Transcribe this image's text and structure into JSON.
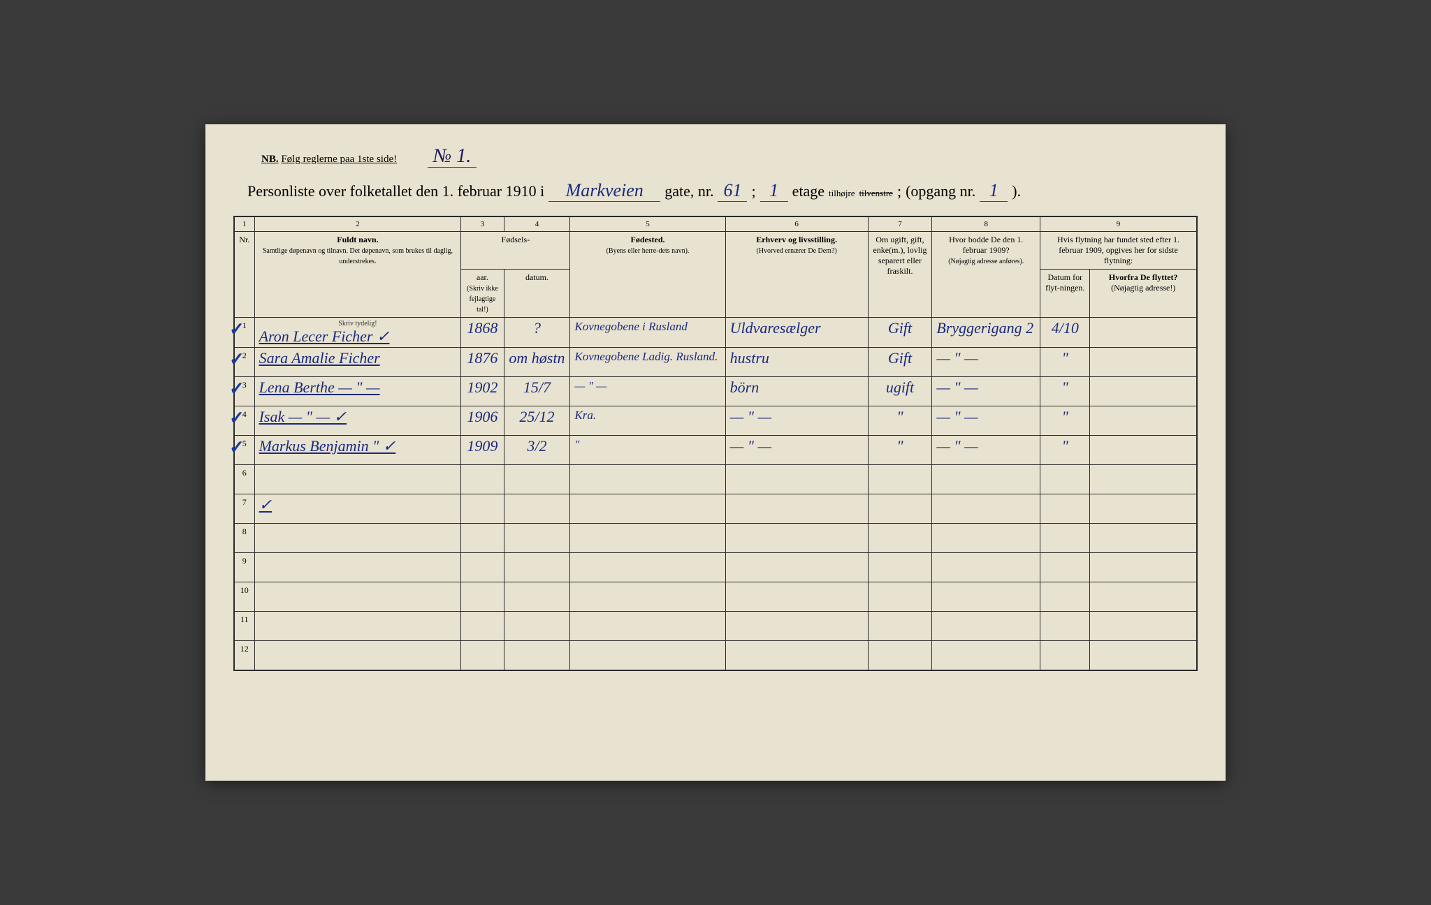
{
  "header": {
    "nb_label": "NB.",
    "nb_text": "Følg reglerne paa 1ste side!",
    "sheet_no": "№ 1.",
    "title_prefix": "Personliste over folketallet den 1. februar 1910 i",
    "street": "Markveien",
    "gate_label": "gate, nr.",
    "gate_nr": "61",
    "etage_label": "etage",
    "etage": "1",
    "side_struck": "tilvenstre",
    "side": "tilhøjre",
    "opgang_label": "(opgang nr.",
    "opgang": "1",
    "close": ")."
  },
  "columns": {
    "nums": [
      "1",
      "2",
      "3",
      "4",
      "5",
      "6",
      "7",
      "8",
      "9"
    ],
    "nr": "Nr.",
    "name_title": "Fuldt navn.",
    "name_sub": "Samtlige døpenavn og tilnavn. Det døpenavn, som brukes til daglig, understrekes.",
    "skriv": "Skriv tydelig!",
    "birth_group": "Fødsels-",
    "year": "aar.",
    "date": "datum.",
    "year_note": "(Skriv ikke fejlagtige tal!)",
    "birthplace": "Fødested.",
    "birthplace_sub": "(Byens eller herre-dets navn).",
    "occupation": "Erhverv og livsstilling.",
    "occupation_sub": "(Hvorved ernærer De Dem?)",
    "marital": "Om ugift, gift, enke(m.), lovlig separert eller fraskilt.",
    "prevaddr": "Hvor bodde De den 1. februar 1909?",
    "prevaddr_sub": "(Nøjagtig adresse anføres).",
    "moved_group": "Hvis flytning har fundet sted efter 1. februar 1909, opgives her for sidste flytning:",
    "moved_date": "Datum for flyt-ningen.",
    "moved_from": "Hvorfra De flyttet?",
    "moved_from_sub": "(Nøjagtig adresse!)"
  },
  "rows": [
    {
      "nr": "1",
      "check": true,
      "name": "Aron Lecer Ficher ✓",
      "year": "1868",
      "date": "?",
      "birthplace": "Kovnegobene i Rusland",
      "occupation": "Uldvaresælger",
      "marital": "Gift",
      "prev": "Bryggerigang 2",
      "mdate": "4/10",
      "mfrom": ""
    },
    {
      "nr": "2",
      "check": true,
      "name": "Sara Amalie Ficher",
      "year": "1876",
      "date": "om høstn",
      "birthplace": "Kovnegobene Ladig. Rusland.",
      "occupation": "hustru",
      "marital": "Gift",
      "prev": "— \" —",
      "mdate": "\"",
      "mfrom": ""
    },
    {
      "nr": "3",
      "check": true,
      "name": "Lena Berthe — \" —",
      "year": "1902",
      "date": "15/7",
      "birthplace": "— \" —",
      "occupation": "börn",
      "marital": "ugift",
      "prev": "— \" —",
      "mdate": "\"",
      "mfrom": ""
    },
    {
      "nr": "4",
      "check": true,
      "name": "Isak         — \" — ✓",
      "year": "1906",
      "date": "25/12",
      "birthplace": "Kra.",
      "occupation": "— \" —",
      "marital": "\"",
      "prev": "— \" —",
      "mdate": "\"",
      "mfrom": ""
    },
    {
      "nr": "5",
      "check": true,
      "name": "Markus Benjamin \" ✓",
      "year": "1909",
      "date": "3/2",
      "birthplace": "\"",
      "occupation": "— \" —",
      "marital": "\"",
      "prev": "— \" —",
      "mdate": "\"",
      "mfrom": ""
    },
    {
      "nr": "6"
    },
    {
      "nr": "7",
      "name": "✓"
    },
    {
      "nr": "8"
    },
    {
      "nr": "9"
    },
    {
      "nr": "10"
    },
    {
      "nr": "11"
    },
    {
      "nr": "12"
    }
  ],
  "style": {
    "paper_color": "#e8e2d0",
    "ink_print": "#2a2a2a",
    "ink_hand": "#1a2a7e",
    "font_print": "Georgia, serif",
    "font_hand": "'Brush Script MT', cursive"
  }
}
